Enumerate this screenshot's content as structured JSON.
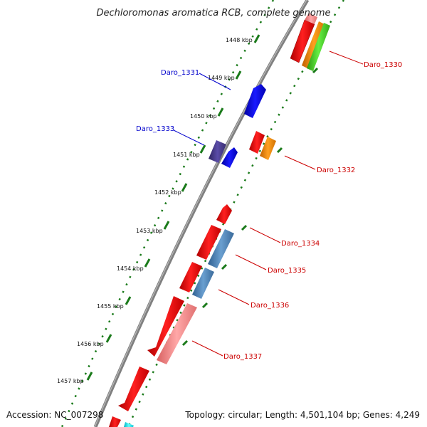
{
  "title": "Dechloromonas aromatica RCB, complete genome",
  "footer": {
    "accession": "Accession: NC_007298",
    "summary": "Topology: circular; Length: 4,501,104 bp; Genes: 4,249"
  },
  "ruler_labels": [
    "1448 kbp",
    "1449 kbp",
    "1450 kbp",
    "1451 kbp",
    "1452 kbp",
    "1453 kbp",
    "1454 kbp",
    "1455 kbp",
    "1456 kbp",
    "1457 kbp"
  ],
  "gene_labels": [
    {
      "id": "g1330",
      "text": "Daro_1330",
      "color": "#cc0000"
    },
    {
      "id": "g1331",
      "text": "Daro_1331",
      "color": "#0000cc"
    },
    {
      "id": "g1332",
      "text": "Daro_1332",
      "color": "#cc0000"
    },
    {
      "id": "g1333",
      "text": "Daro_1333",
      "color": "#0000cc"
    },
    {
      "id": "g1334",
      "text": "Daro_1334",
      "color": "#cc0000"
    },
    {
      "id": "g1335",
      "text": "Daro_1335",
      "color": "#cc0000"
    },
    {
      "id": "g1336",
      "text": "Daro_1336",
      "color": "#cc0000"
    },
    {
      "id": "g1337",
      "text": "Daro_1337",
      "color": "#cc0000"
    }
  ],
  "colors": {
    "backbone": "#808080",
    "ruler_dots": "#1a7a1a",
    "forward_genes": "#ff0000",
    "blue_gene": "#0000ee",
    "purple_gene": "#4b3d8f",
    "steelblue_gene": "#4a7fb5",
    "orange_gene": "#ff8c00",
    "green_gene": "#44cc22",
    "pink_gene": "#f08080",
    "cyan_gene": "#00e5ee"
  }
}
